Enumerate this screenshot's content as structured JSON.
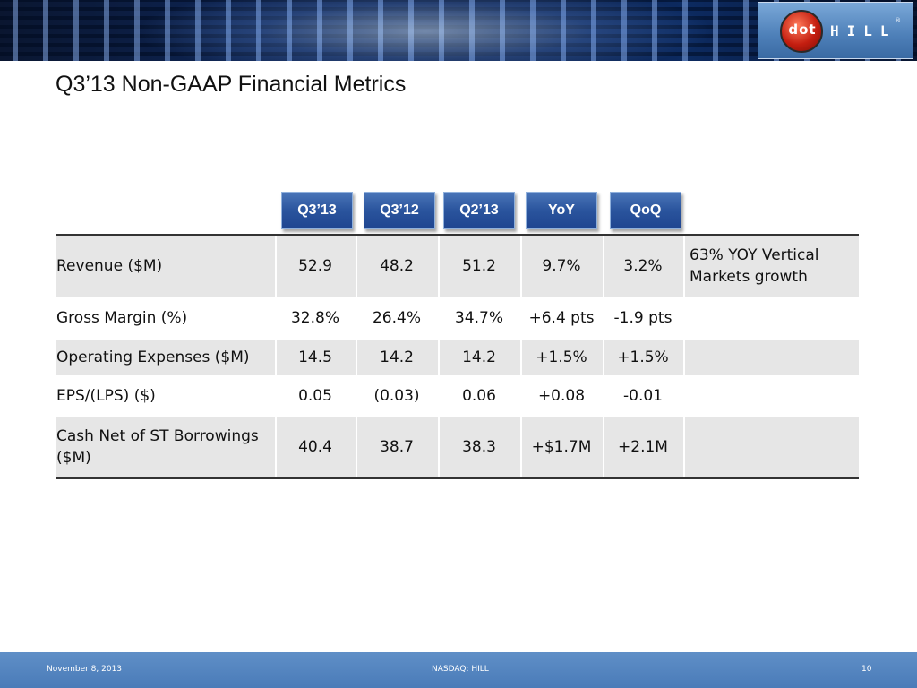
{
  "header": {
    "logo": {
      "icon": "dot-hill-logo",
      "circle_text": "dot",
      "brand_text": "HILL",
      "reg_mark": "®"
    }
  },
  "title": "Q3’13 Non-GAAP Financial Metrics",
  "columns": [
    "Q3’13",
    "Q3’12",
    "Q2’13",
    "YoY",
    "QoQ"
  ],
  "rows": [
    {
      "label": "Revenue ($M)",
      "values": [
        "52.9",
        "48.2",
        "51.2",
        "9.7%",
        "3.2%"
      ],
      "note": "63%  YOY Vertical Markets growth",
      "shaded": true
    },
    {
      "label": "Gross Margin (%)",
      "values": [
        "32.8%",
        "26.4%",
        "34.7%",
        "+6.4 pts",
        "-1.9 pts"
      ],
      "note": "",
      "shaded": false
    },
    {
      "label": "Operating Expenses ($M)",
      "values": [
        "14.5",
        "14.2",
        "14.2",
        "+1.5%",
        "+1.5%"
      ],
      "note": "",
      "shaded": true
    },
    {
      "label": "EPS/(LPS) ($)",
      "values": [
        "0.05",
        "(0.03)",
        "0.06",
        "+0.08",
        "-0.01"
      ],
      "note": "",
      "shaded": false
    },
    {
      "label": "Cash Net of ST Borrowings ($M)",
      "values": [
        "40.4",
        "38.7",
        "38.3",
        "+$1.7M",
        "+2.1M"
      ],
      "note": "",
      "shaded": true
    }
  ],
  "footer": {
    "date": "November 8, 2013",
    "ticker": "NASDAQ: HILL",
    "page": "10"
  },
  "colors": {
    "header_button": "#2a549d",
    "footer": "#5f8fc7",
    "shaded_row": "#e6e6e6",
    "logo_red": "#c41e10"
  }
}
